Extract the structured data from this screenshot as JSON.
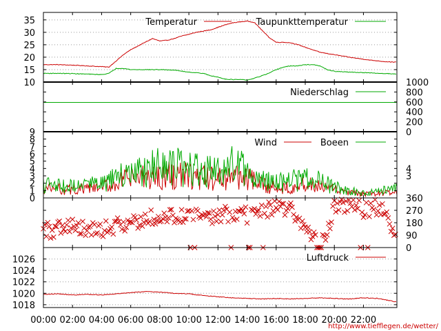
{
  "colors": {
    "red": "#cc0000",
    "green": "#00aa00",
    "frame": "#000000",
    "grid": "#999999",
    "background": "#ffffff"
  },
  "source": "http://www.tiefflegen.de/wetter/",
  "chart_data": [
    {
      "id": "temperature",
      "type": "line",
      "x_unit": "hours",
      "xlim": [
        0,
        24.3
      ],
      "ylim": [
        10,
        38
      ],
      "yticks": [
        10,
        15,
        20,
        25,
        30,
        35
      ],
      "grid": true,
      "legend_placement": "top-right",
      "series": [
        {
          "name": "Temperatur",
          "color": "#cc0000",
          "x": [
            0,
            1,
            2,
            3,
            4,
            4.5,
            5,
            5.5,
            6,
            6.5,
            7,
            7.5,
            8,
            8.5,
            9,
            9.5,
            10,
            10.5,
            11,
            11.5,
            12,
            12.5,
            13,
            13.5,
            14,
            14.5,
            15,
            15.5,
            16,
            16.5,
            17,
            17.5,
            18,
            18.5,
            19,
            19.5,
            20,
            20.5,
            21,
            21.5,
            22,
            22.5,
            23,
            23.5,
            24.3
          ],
          "y": [
            17,
            17,
            16.8,
            16.5,
            16.2,
            16,
            18.5,
            21,
            23,
            24.5,
            26,
            27.5,
            26.5,
            26.8,
            27.5,
            28.5,
            29.2,
            30,
            30.5,
            31,
            32,
            33,
            33.8,
            34.2,
            34.5,
            34,
            31,
            28,
            26,
            26,
            25.8,
            25,
            24,
            23,
            22,
            21.5,
            21,
            20.5,
            20,
            19.6,
            19.2,
            18.8,
            18.5,
            18.2,
            18
          ]
        },
        {
          "name": "Taupunkttemperatur",
          "color": "#00aa00",
          "x": [
            0,
            1,
            2,
            3,
            4,
            4.5,
            5,
            5.5,
            6,
            7,
            8,
            9,
            10,
            11,
            11.5,
            12,
            12.5,
            13,
            13.5,
            14,
            14.5,
            15,
            15.5,
            16,
            16.5,
            17,
            17.5,
            18,
            18.5,
            19,
            19.5,
            20,
            21,
            22,
            23,
            24.3
          ],
          "y": [
            13.5,
            13.5,
            13.4,
            13.2,
            13,
            13.5,
            15.5,
            15.5,
            15,
            15,
            15,
            14.8,
            14,
            13.5,
            12.5,
            12,
            11.2,
            11,
            11,
            10.8,
            11.5,
            12.5,
            13.5,
            15,
            16,
            16.5,
            16.5,
            17,
            17,
            16.5,
            15,
            14.3,
            14,
            13.8,
            13.5,
            13.3
          ]
        }
      ]
    },
    {
      "id": "precipitation",
      "type": "line",
      "x_unit": "hours",
      "xlim": [
        0,
        24.3
      ],
      "ylim": [
        0,
        1000
      ],
      "yticks": [
        0,
        200,
        400,
        600,
        800,
        1000
      ],
      "y_axis_side": "right",
      "legend_placement": "top-right",
      "series": [
        {
          "name": "Niederschlag",
          "color": "#00aa00",
          "x": [
            0,
            24.3
          ],
          "y": [
            590,
            590
          ]
        }
      ]
    },
    {
      "id": "wind",
      "type": "line",
      "x_unit": "hours",
      "xlim": [
        0,
        24.3
      ],
      "ylim": [
        0,
        9
      ],
      "yticks": [
        0,
        1,
        2,
        3,
        4,
        5,
        6,
        7,
        8,
        9
      ],
      "right_yticks": [
        3,
        4
      ],
      "noisy": true,
      "legend_placement": "top-right",
      "series": [
        {
          "name": "Wind",
          "color": "#cc0000",
          "x": [
            0,
            1,
            2,
            3,
            4,
            5,
            6,
            7,
            8,
            9,
            10,
            11,
            12,
            13,
            14,
            15,
            16,
            17,
            18,
            19,
            20,
            21,
            22,
            23,
            24.3
          ],
          "y": [
            1.3,
            1.2,
            1.1,
            1.2,
            1.4,
            2.0,
            2.6,
            2.7,
            3.0,
            3.1,
            2.9,
            2.7,
            2.5,
            3.1,
            2.6,
            1.7,
            1.4,
            1.6,
            1.8,
            1.5,
            1.1,
            0.7,
            0.5,
            0.6,
            0.8
          ]
        },
        {
          "name": "Boeen",
          "color": "#00aa00",
          "x": [
            0,
            1,
            2,
            3,
            4,
            5,
            6,
            7,
            8,
            9,
            10,
            11,
            12,
            13,
            14,
            15,
            16,
            17,
            18,
            19,
            20,
            21,
            22,
            23,
            24.3
          ],
          "y": [
            1.7,
            1.6,
            1.5,
            1.7,
            1.9,
            2.6,
            3.4,
            3.7,
            4.2,
            4.3,
            4.0,
            3.7,
            3.4,
            4.7,
            3.6,
            2.4,
            2.0,
            2.3,
            2.6,
            2.2,
            1.5,
            1.0,
            0.7,
            0.9,
            1.2
          ]
        }
      ]
    },
    {
      "id": "wind-direction",
      "type": "scatter",
      "marker": "x",
      "x_unit": "hours",
      "xlim": [
        0,
        24.3
      ],
      "ylim": [
        0,
        360
      ],
      "yticks": [
        0,
        90,
        180,
        270,
        360
      ],
      "y_axis_side": "right",
      "series": [
        {
          "name": "",
          "color": "#cc0000",
          "x": [
            0,
            1,
            2,
            3,
            4,
            5,
            6,
            7,
            8,
            9,
            10,
            11,
            12,
            13,
            14,
            15,
            16,
            17,
            18,
            19,
            20,
            21,
            22,
            23,
            24.3
          ],
          "y": [
            120,
            130,
            140,
            120,
            130,
            160,
            190,
            210,
            210,
            215,
            215,
            220,
            250,
            240,
            230,
            250,
            300,
            270,
            150,
            0,
            280,
            300,
            270,
            300,
            120
          ]
        }
      ]
    },
    {
      "id": "pressure",
      "type": "line",
      "x_unit": "hours",
      "xlim": [
        0,
        24.3
      ],
      "ylim": [
        1017.5,
        1028
      ],
      "yticks": [
        1018,
        1020,
        1022,
        1024,
        1026
      ],
      "grid": true,
      "legend_placement": "top-right",
      "xticks": [
        "00:00",
        "02:00",
        "04:00",
        "06:00",
        "08:00",
        "10:00",
        "12:00",
        "14:00",
        "16:00",
        "18:00",
        "20:00",
        "22:00"
      ],
      "series": [
        {
          "name": "Luftdruck",
          "color": "#cc0000",
          "x": [
            0,
            1,
            2,
            3,
            4,
            5,
            6,
            7,
            8,
            9,
            10,
            11,
            12,
            13,
            14,
            15,
            16,
            17,
            18,
            19,
            20,
            21,
            22,
            23,
            24,
            24.3
          ],
          "y": [
            1019.8,
            1019.9,
            1019.7,
            1019.8,
            1019.7,
            1019.9,
            1020.1,
            1020.3,
            1020.2,
            1020.0,
            1019.9,
            1019.6,
            1019.4,
            1019.2,
            1019.1,
            1019.0,
            1019.1,
            1019.0,
            1019.1,
            1019.2,
            1019.1,
            1019.0,
            1019.2,
            1019.1,
            1018.6,
            1018.5
          ]
        }
      ]
    }
  ]
}
